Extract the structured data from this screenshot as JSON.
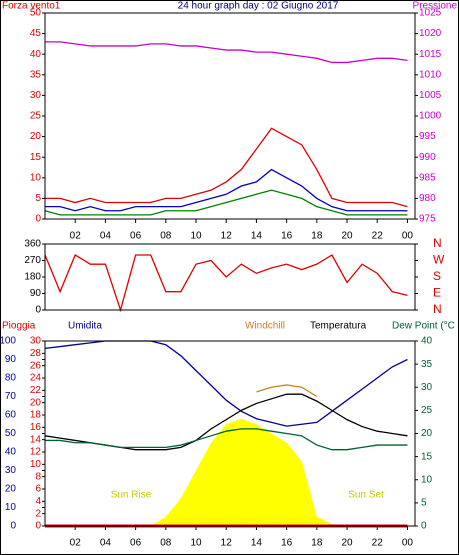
{
  "chart_data": [
    {
      "type": "line",
      "title": "24 hour graph day : 02 Giugno 2017",
      "ylabel": "Forza vento1",
      "y2label": "Pressione",
      "x": [
        0,
        1,
        2,
        3,
        4,
        5,
        6,
        7,
        8,
        9,
        10,
        11,
        12,
        13,
        14,
        15,
        16,
        17,
        18,
        19,
        20,
        21,
        22,
        23,
        24
      ],
      "xlim": [
        0,
        24.5
      ],
      "xticks": [
        {
          "value": 2,
          "label": "02"
        },
        {
          "value": 4,
          "label": "04"
        },
        {
          "value": 6,
          "label": "06"
        },
        {
          "value": 8,
          "label": "08"
        },
        10,
        12,
        14,
        16,
        18,
        20,
        22,
        {
          "value": 24,
          "label": "00"
        }
      ],
      "ylim": [
        0,
        50
      ],
      "yticks": [
        0,
        5,
        10,
        15,
        20,
        25,
        30,
        35,
        40,
        45,
        50
      ],
      "y2lim": [
        975,
        1025
      ],
      "y2ticks": [
        975,
        980,
        985,
        990,
        995,
        1000,
        1005,
        1010,
        1015,
        1020,
        1025
      ],
      "series": [
        {
          "color": "#e00000",
          "values": [
            5,
            5,
            4,
            5,
            4,
            4,
            4,
            4,
            5,
            5,
            6,
            7,
            9,
            12,
            17,
            22,
            20,
            18,
            12,
            5,
            4,
            4,
            4,
            4,
            3
          ]
        },
        {
          "color": "#0000c0",
          "values": [
            3,
            3,
            2,
            3,
            2,
            2,
            3,
            3,
            3,
            3,
            4,
            5,
            6,
            8,
            9,
            12,
            10,
            8,
            5,
            3,
            2,
            2,
            2,
            2,
            2
          ]
        },
        {
          "color": "#008000",
          "values": [
            2,
            1,
            1,
            1,
            1,
            1,
            1,
            1,
            2,
            2,
            2,
            3,
            4,
            5,
            6,
            7,
            6,
            5,
            3,
            2,
            1,
            1,
            1,
            1,
            1
          ]
        },
        {
          "color": "#cc00cc",
          "axis": "y2",
          "values": [
            1018,
            1018,
            1017.5,
            1017,
            1017,
            1017,
            1017,
            1017.5,
            1017.5,
            1017,
            1017,
            1016.5,
            1016,
            1016,
            1015.5,
            1015.5,
            1015,
            1014.5,
            1014,
            1013,
            1013,
            1013.5,
            1014,
            1014,
            1013.5
          ]
        }
      ]
    },
    {
      "type": "line",
      "x": [
        0,
        1,
        2,
        3,
        4,
        5,
        6,
        7,
        8,
        9,
        10,
        11,
        12,
        13,
        14,
        15,
        16,
        17,
        18,
        19,
        20,
        21,
        22,
        23,
        24
      ],
      "xlim": [
        0,
        24.5
      ],
      "ylim": [
        0,
        360
      ],
      "yticks": [
        0,
        90,
        180,
        270,
        360
      ],
      "y2lim": [
        0,
        360
      ],
      "y2ticks": [
        {
          "value": 0,
          "label": "N"
        },
        {
          "value": 90,
          "label": "E"
        },
        {
          "value": 180,
          "label": "S"
        },
        {
          "value": 270,
          "label": "W"
        },
        {
          "value": 360,
          "label": "N"
        }
      ],
      "series": [
        {
          "color": "#e00000",
          "values": [
            300,
            100,
            300,
            250,
            250,
            0,
            300,
            300,
            100,
            100,
            250,
            270,
            180,
            250,
            200,
            230,
            250,
            220,
            250,
            300,
            150,
            250,
            200,
            100,
            80
          ]
        }
      ]
    },
    {
      "type": "line",
      "x": [
        0,
        1,
        2,
        3,
        4,
        5,
        6,
        7,
        8,
        9,
        10,
        11,
        12,
        13,
        14,
        15,
        16,
        17,
        18,
        19,
        20,
        21,
        22,
        23,
        24
      ],
      "xlim": [
        0,
        24.5
      ],
      "xticks": [
        {
          "value": 2,
          "label": "02"
        },
        {
          "value": 4,
          "label": "04"
        },
        {
          "value": 6,
          "label": "06"
        },
        {
          "value": 8,
          "label": "08"
        },
        10,
        12,
        14,
        16,
        18,
        20,
        22,
        {
          "value": 24,
          "label": "00"
        }
      ],
      "ylim": [
        0,
        30
      ],
      "yticks": [
        0,
        2,
        4,
        6,
        8,
        10,
        12,
        14,
        16,
        18,
        20,
        22,
        24,
        26,
        28,
        30
      ],
      "y2lim": [
        0,
        100
      ],
      "y2ticks": [
        0,
        10,
        20,
        30,
        40,
        50,
        60,
        70,
        80,
        90,
        100
      ],
      "y3lim": [
        0,
        40
      ],
      "y3ticks": [
        0,
        5,
        10,
        15,
        20,
        25,
        30,
        35,
        40
      ],
      "annotations": [
        "Sun Rise",
        "Sun Set"
      ],
      "series": [
        {
          "type": "area",
          "color": "#ffff00",
          "axis": "y2",
          "values": [
            0,
            0,
            0,
            0,
            0,
            0,
            0,
            0,
            5,
            15,
            30,
            45,
            55,
            58,
            55,
            50,
            45,
            35,
            5,
            1,
            0,
            0,
            0,
            0,
            0
          ]
        },
        {
          "name": "Pioggia",
          "color": "#e00000",
          "values": [
            0,
            0,
            0,
            0,
            0,
            0,
            0,
            0,
            0,
            0,
            0,
            0,
            0,
            0,
            0,
            0,
            0,
            0,
            0,
            0,
            0,
            0,
            0,
            0,
            0
          ]
        },
        {
          "name": "Umidita",
          "color": "#0000a0",
          "axis": "y2",
          "values": [
            96,
            97,
            98,
            99,
            100,
            100,
            100,
            100,
            98,
            92,
            84,
            76,
            68,
            62,
            58,
            56,
            54,
            55,
            56,
            62,
            68,
            74,
            80,
            86,
            90
          ]
        },
        {
          "name": "Windchill",
          "color": "#d08020",
          "axis": "y3",
          "values": [
            null,
            null,
            null,
            null,
            null,
            null,
            null,
            null,
            null,
            null,
            null,
            null,
            null,
            null,
            29,
            30,
            30.5,
            30,
            28,
            null,
            null,
            null,
            null,
            null,
            null
          ]
        },
        {
          "name": "Temperatura",
          "color": "#000000",
          "axis": "y3",
          "values": [
            19.5,
            19,
            18.5,
            18,
            17.5,
            17,
            16.5,
            16.5,
            16.5,
            17,
            18.5,
            21,
            23,
            25,
            26.5,
            27.5,
            28.5,
            28.5,
            27,
            25,
            23,
            21.5,
            20.5,
            20,
            19.5
          ]
        },
        {
          "name": "Dew Point (°C",
          "color": "#006030",
          "axis": "y3",
          "values": [
            18.5,
            18.5,
            18,
            18,
            17.5,
            17,
            17,
            17,
            17,
            17.5,
            18.5,
            19.5,
            20.5,
            21,
            21,
            20.5,
            20,
            19.5,
            17.5,
            16.5,
            16.5,
            17,
            17.5,
            17.5,
            17.5
          ]
        }
      ]
    }
  ]
}
